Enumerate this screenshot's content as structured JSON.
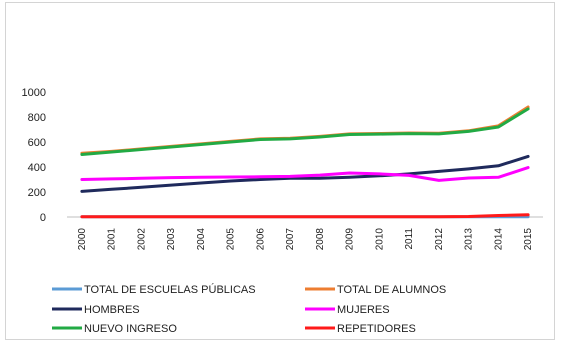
{
  "chart_data": {
    "type": "line",
    "title": "",
    "xlabel": "",
    "ylabel": "",
    "ylim": [
      0,
      1000
    ],
    "yticks": [
      0,
      200,
      400,
      600,
      800,
      1000
    ],
    "x": [
      "2000",
      "2001",
      "2002",
      "2003",
      "2004",
      "2005",
      "2006",
      "2007",
      "2008",
      "2009",
      "2010",
      "2011",
      "2012",
      "2013",
      "2014",
      "2015"
    ],
    "grid": false,
    "legend_position": "bottom",
    "series": [
      {
        "name": "TOTAL DE ESCUELAS PÚBLICAS",
        "color": "#5b9bd5",
        "values": [
          2,
          2,
          2,
          2,
          2,
          2,
          2,
          2,
          2,
          2,
          2,
          2,
          2,
          2,
          2,
          2
        ]
      },
      {
        "name": "TOTAL DE ALUMNOS",
        "color": "#ed7d31",
        "values": [
          510,
          525,
          545,
          565,
          585,
          605,
          625,
          630,
          645,
          665,
          668,
          672,
          670,
          690,
          730,
          880
        ]
      },
      {
        "name": "HOMBRES",
        "color": "#1f2a5c",
        "values": [
          205,
          222,
          238,
          255,
          272,
          288,
          300,
          310,
          310,
          318,
          330,
          345,
          365,
          385,
          410,
          485
        ]
      },
      {
        "name": "MUJERES",
        "color": "#ff00ff",
        "values": [
          300,
          305,
          310,
          315,
          318,
          320,
          322,
          325,
          335,
          352,
          345,
          333,
          293,
          312,
          318,
          395
        ]
      },
      {
        "name": "NUEVO INGRESO",
        "color": "#22aa44",
        "values": [
          500,
          520,
          540,
          560,
          580,
          600,
          620,
          625,
          640,
          660,
          663,
          667,
          665,
          685,
          720,
          865
        ]
      },
      {
        "name": "REPETIDORES",
        "color": "#ff1a1a",
        "values": [
          2,
          2,
          2,
          2,
          2,
          2,
          2,
          2,
          2,
          2,
          2,
          2,
          2,
          4,
          12,
          18
        ]
      }
    ]
  }
}
